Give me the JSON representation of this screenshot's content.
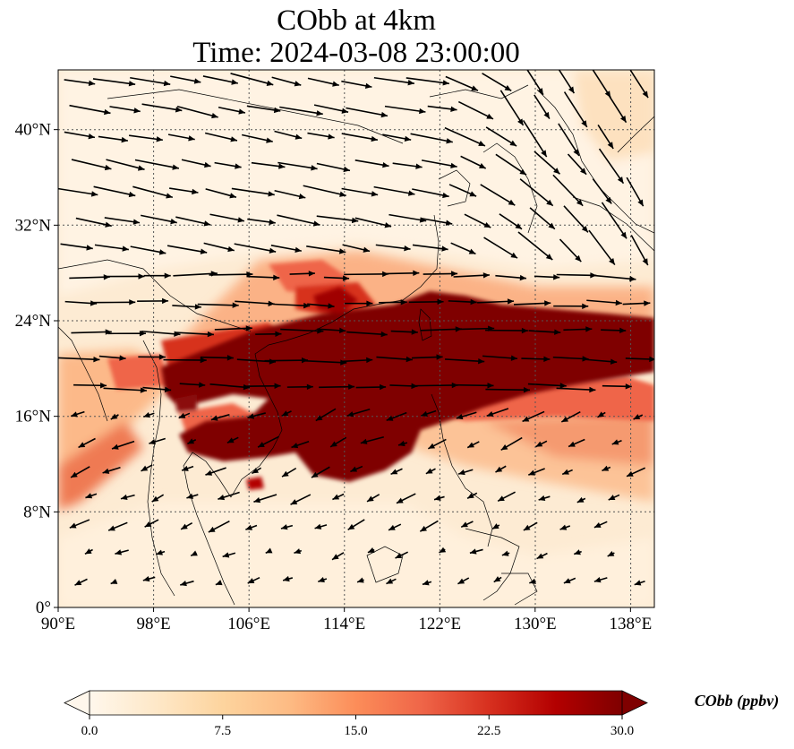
{
  "title": {
    "line1": "CObb at 4km",
    "line2": "Time: 2024-03-08 23:00:00"
  },
  "map": {
    "variable": "CObb",
    "level": "4km",
    "lon_range": [
      90,
      140
    ],
    "lat_range": [
      0,
      45
    ],
    "gridlines": "dotted",
    "lon_ticks": [
      {
        "value": 90,
        "label": "90°E"
      },
      {
        "value": 98,
        "label": "98°E"
      },
      {
        "value": 106,
        "label": "106°E"
      },
      {
        "value": 114,
        "label": "114°E"
      },
      {
        "value": 122,
        "label": "122°E"
      },
      {
        "value": 130,
        "label": "130°E"
      },
      {
        "value": 138,
        "label": "138°E"
      }
    ],
    "lat_ticks": [
      {
        "value": 0,
        "label": "0°"
      },
      {
        "value": 8,
        "label": "8°N"
      },
      {
        "value": 16,
        "label": "16°N"
      },
      {
        "value": 24,
        "label": "24°N"
      },
      {
        "value": 32,
        "label": "32°N"
      },
      {
        "value": 40,
        "label": "40°N"
      }
    ],
    "plume": {
      "description_color": "#7f0000",
      "core_lon_range": [
        99,
        140
      ],
      "core_lat_range": [
        11,
        26
      ]
    },
    "wind_vectors": "black arrows, predominantly westerly"
  },
  "colorbar": {
    "label": "CObb (ppbv)",
    "min": 0.0,
    "max": 30.0,
    "extend": "both",
    "colormap": "OrRd",
    "colors": [
      "#fff7ec",
      "#fee8c8",
      "#fdd49e",
      "#fdbb84",
      "#fc8d59",
      "#ef6548",
      "#d7301f",
      "#b30000",
      "#7f0000"
    ],
    "ticks": [
      {
        "value": 0.0,
        "label": "0.0"
      },
      {
        "value": 7.5,
        "label": "7.5"
      },
      {
        "value": 15.0,
        "label": "15.0"
      },
      {
        "value": 22.5,
        "label": "22.5"
      },
      {
        "value": 30.0,
        "label": "30.0"
      }
    ]
  }
}
